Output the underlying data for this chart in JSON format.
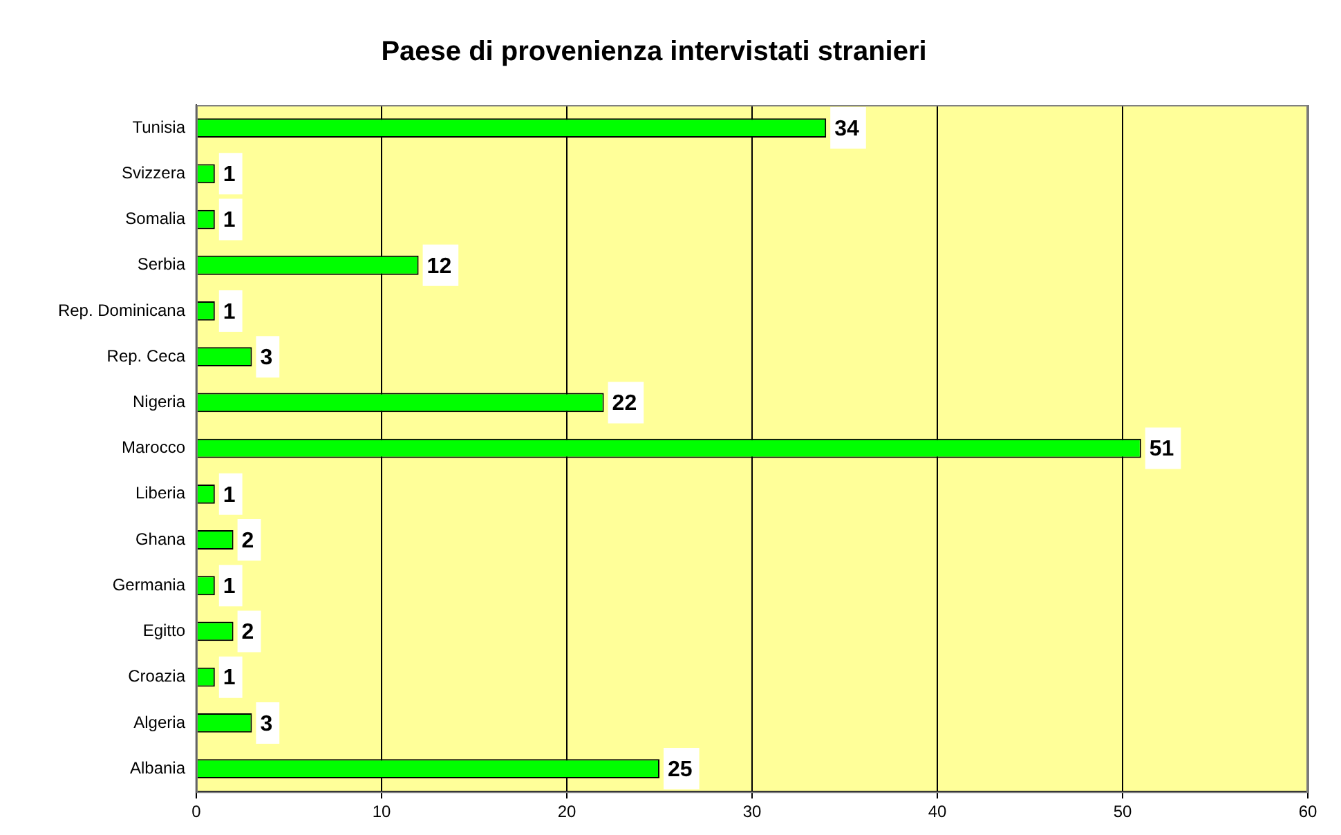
{
  "chart_data": {
    "type": "bar",
    "orientation": "horizontal",
    "title": "Paese di provenienza intervistati stranieri",
    "categories": [
      "Tunisia",
      "Svizzera",
      "Somalia",
      "Serbia",
      "Rep. Dominicana",
      "Rep. Ceca",
      "Nigeria",
      "Marocco",
      "Liberia",
      "Ghana",
      "Germania",
      "Egitto",
      "Croazia",
      "Algeria",
      "Albania"
    ],
    "values": [
      34,
      1,
      1,
      12,
      1,
      3,
      22,
      51,
      1,
      2,
      1,
      2,
      1,
      3,
      25
    ],
    "color": "#00ff00",
    "xlim": [
      0,
      60
    ],
    "xticks": [
      0,
      10,
      20,
      30,
      40,
      50,
      60
    ],
    "grid": "x",
    "legend": false,
    "data_labels": true
  }
}
